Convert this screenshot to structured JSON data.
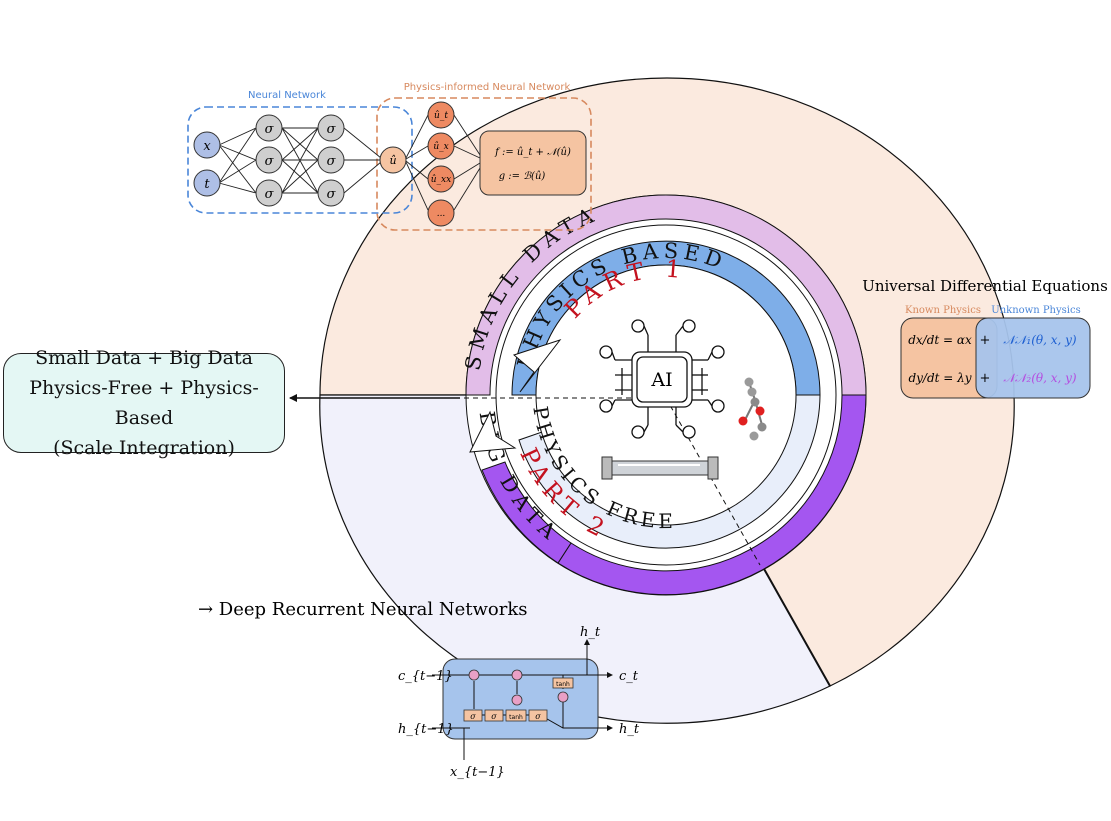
{
  "center": {
    "label": "AI"
  },
  "rings": {
    "small_data": "SMALL DATA",
    "physics_based": "PHYSICS BASED",
    "part1": "PART 1",
    "big_data": "BIG DATA",
    "physics_free": "PHYSICS FREE",
    "part2": "PART 2"
  },
  "left_box": {
    "line1": "Small Data + Big Data",
    "line2": "Physics-Free + Physics-Based",
    "line3": "(Scale Integration)"
  },
  "neural_network": {
    "title": "Neural Network",
    "inputs": [
      "x",
      "t"
    ],
    "hidden_symbol": "σ",
    "output": "û"
  },
  "pinn": {
    "title": "Physics-informed Neural Network",
    "nodes": [
      "û_t",
      "û_x",
      "û_xx",
      "..."
    ],
    "eq1": "f := û_t + 𝒩(û)",
    "eq2": "g := ℬ(û)"
  },
  "ude": {
    "title": "Universal Differential Equations",
    "known": "Known Physics",
    "unknown": "Unknown Physics",
    "eq1_left": "dx/dt = αx",
    "eq1_right": "𝒩𝒩₁(θ, x, y)",
    "eq2_left": "dy/dt = λy",
    "eq2_right": "𝒩𝒩₂(θ, x, y)",
    "plus": "+"
  },
  "rnn": {
    "title": "→  Deep Recurrent Neural Networks",
    "c_in": "c_{t−1}",
    "c_out": "c_t",
    "h_in": "h_{t−1}",
    "h_out": "h_t",
    "h_top": "h_t",
    "x_in": "x_{t−1}",
    "gate": "σ",
    "tanh": "tanh"
  },
  "colors": {
    "salmon_region": "#fbeadf",
    "lavender_region": "#f1f1fb",
    "small_data_ring": "#e2bde8",
    "physics_based_ring": "#7eaee8",
    "big_data_ring": "#a456f0",
    "physics_free_ring": "#e8eefa",
    "part_red": "#c4121f",
    "nn_blue": "#4a86d8",
    "pinn_orange": "#d7895e"
  }
}
